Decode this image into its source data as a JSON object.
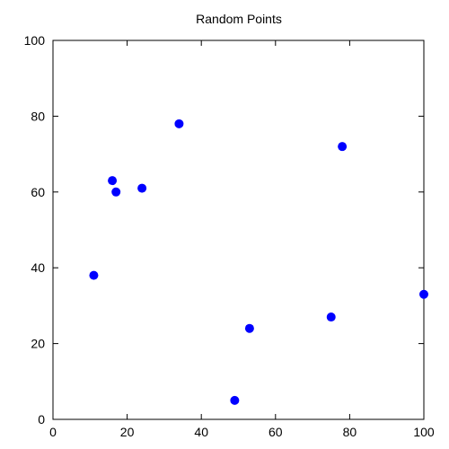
{
  "chart_data": {
    "type": "scatter",
    "title": "Random Points",
    "xlabel": "",
    "ylabel": "",
    "xlim": [
      0,
      100
    ],
    "ylim": [
      0,
      100
    ],
    "xticks": [
      0,
      20,
      40,
      60,
      80,
      100
    ],
    "yticks": [
      0,
      20,
      40,
      60,
      80,
      100
    ],
    "grid": false,
    "marker_color": "#0000ff",
    "series": [
      {
        "points": [
          {
            "x": 11,
            "y": 38
          },
          {
            "x": 16,
            "y": 63
          },
          {
            "x": 17,
            "y": 60
          },
          {
            "x": 24,
            "y": 61
          },
          {
            "x": 34,
            "y": 78
          },
          {
            "x": 49,
            "y": 5
          },
          {
            "x": 53,
            "y": 24
          },
          {
            "x": 75,
            "y": 27
          },
          {
            "x": 78,
            "y": 72
          },
          {
            "x": 100,
            "y": 33
          }
        ]
      }
    ]
  }
}
